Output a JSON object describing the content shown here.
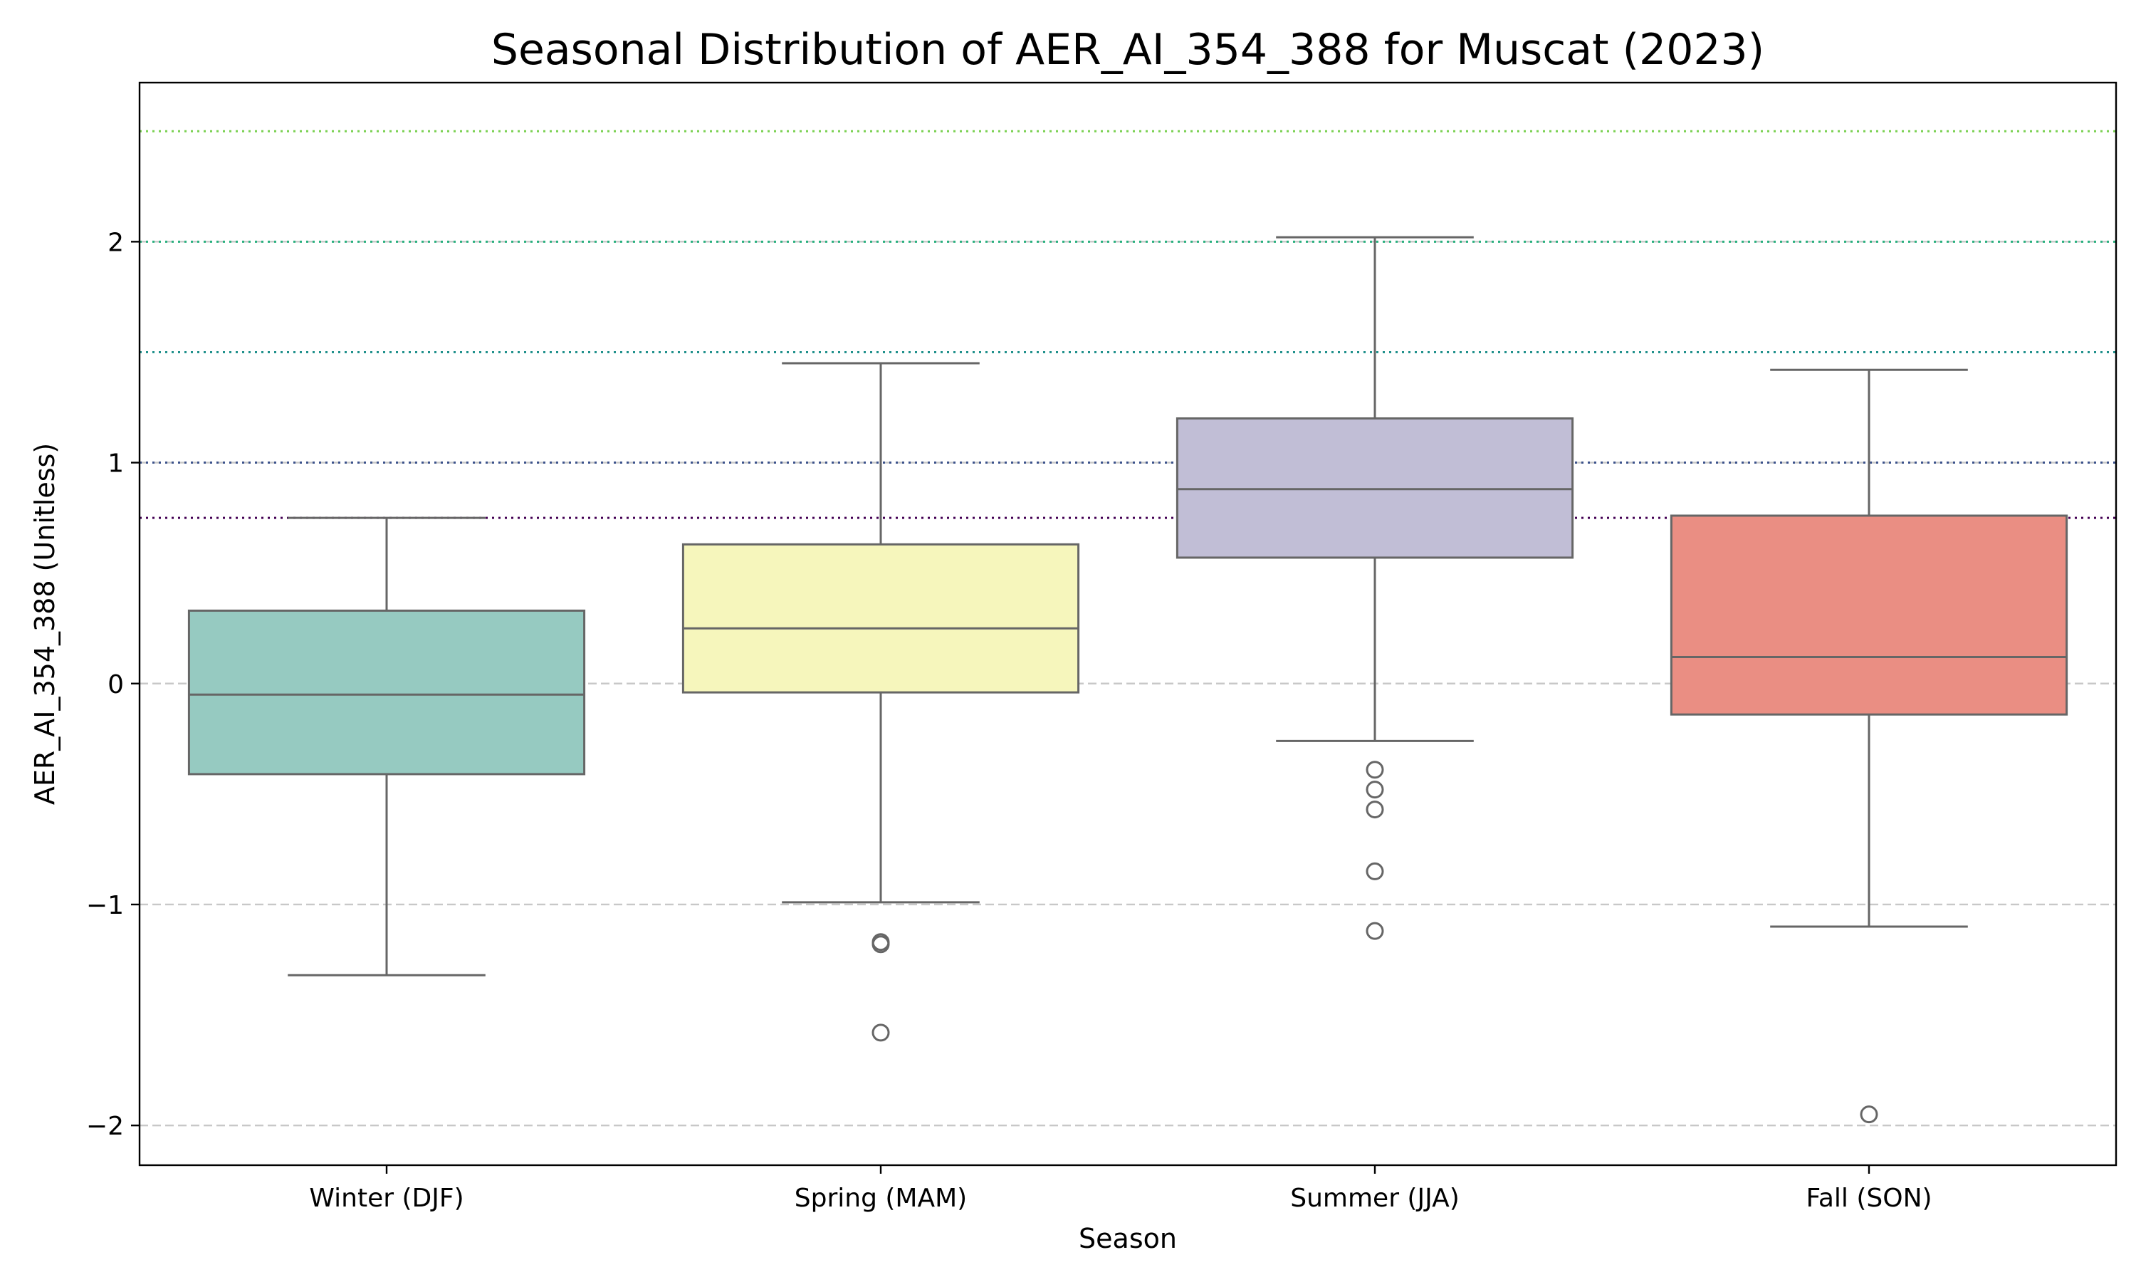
{
  "chart_data": {
    "type": "box",
    "title": "Seasonal Distribution of AER_AI_354_388 for Muscat (2023)",
    "xlabel": "Season",
    "ylabel": "AER_AI_354_388 (Unitless)",
    "ylim": [
      -2.18,
      2.72
    ],
    "yticks": [
      -2,
      -1,
      0,
      1,
      2
    ],
    "ytick_labels": [
      "−2",
      "−1",
      "0",
      "1",
      "2"
    ],
    "grid": "horizontal dashed at major y ticks",
    "categories": [
      "Winter (DJF)",
      "Spring (MAM)",
      "Summer (JJA)",
      "Fall (SON)"
    ],
    "boxes": [
      {
        "category": "Winter (DJF)",
        "whisker_low": -1.32,
        "q1": -0.41,
        "median": -0.05,
        "q3": 0.33,
        "whisker_high": 0.75,
        "outliers": [],
        "color": "#96cac1"
      },
      {
        "category": "Spring (MAM)",
        "whisker_low": -0.99,
        "q1": -0.04,
        "median": 0.25,
        "q3": 0.63,
        "whisker_high": 1.45,
        "outliers": [
          -1.17,
          -1.18,
          -1.58
        ],
        "color": "#f6f6bc"
      },
      {
        "category": "Summer (JJA)",
        "whisker_low": -0.26,
        "q1": 0.57,
        "median": 0.88,
        "q3": 1.2,
        "whisker_high": 2.02,
        "outliers": [
          -0.39,
          -0.48,
          -0.57,
          -0.85,
          -1.12
        ],
        "color": "#c1bed6"
      },
      {
        "category": "Fall (SON)",
        "whisker_low": -1.1,
        "q1": -0.14,
        "median": 0.12,
        "q3": 0.76,
        "whisker_high": 1.42,
        "outliers": [
          -1.95
        ],
        "color": "#ea8e83"
      }
    ],
    "reference_lines": [
      {
        "y": 0.75,
        "color": "#440154"
      },
      {
        "y": 1.0,
        "color": "#3b528b"
      },
      {
        "y": 1.5,
        "color": "#21918c"
      },
      {
        "y": 2.0,
        "color": "#2ab07f"
      },
      {
        "y": 2.5,
        "color": "#7ad151"
      }
    ],
    "line_color": "#666666",
    "grid_color": "#c8c8c8"
  }
}
